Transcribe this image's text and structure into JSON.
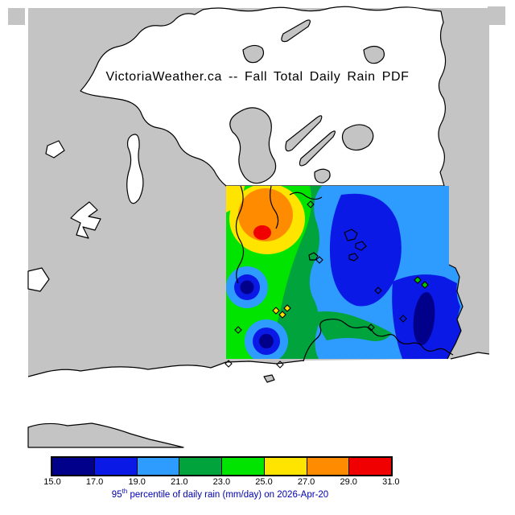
{
  "title": "VictoriaWeather.ca -- Fall Total Daily Rain PDF",
  "caption": {
    "value_prefix": "95",
    "sup": "th",
    "rest": " percentile of daily rain (mm/day) on 2026-Apr-20"
  },
  "colorbar": {
    "labels": [
      "15.0",
      "17.0",
      "19.0",
      "21.0",
      "23.0",
      "25.0",
      "27.0",
      "29.0",
      "31.0"
    ],
    "colors": [
      "#00008B",
      "#0A19E6",
      "#2E9BFF",
      "#00A33C",
      "#00E400",
      "#FFE400",
      "#FF8C00",
      "#F00000"
    ]
  },
  "map": {
    "land_color": "#C4C4C4",
    "water_color": "#FFFFFF",
    "coast_color": "#000000"
  },
  "chart_data": {
    "type": "heatmap",
    "title": "VictoriaWeather.ca -- Fall Total Daily Rain PDF",
    "caption": "95th percentile of daily rain (mm/day) on 2026-Apr-20",
    "variable": "95th percentile of daily rain",
    "units": "mm/day",
    "date": "2026-Apr-20",
    "season": "Fall",
    "colorbar_ticks": [
      15.0,
      17.0,
      19.0,
      21.0,
      23.0,
      25.0,
      27.0,
      29.0,
      31.0
    ],
    "colorbar_colors": [
      "#00008B",
      "#0A19E6",
      "#2E9BFF",
      "#00A33C",
      "#00E400",
      "#FFE400",
      "#FF8C00",
      "#F00000"
    ],
    "value_range": [
      15.0,
      31.0
    ],
    "legend_position": "bottom",
    "features": [
      {
        "label": "maximum (red core)",
        "approx_value": 31,
        "location": "northwest of data domain"
      },
      {
        "label": "local minimum (navy core)",
        "approx_value": 15,
        "location": "west-central, near left edge"
      },
      {
        "label": "local minimum (navy core)",
        "approx_value": 15,
        "location": "southwest of data domain"
      },
      {
        "label": "broad minimum (large blue blob)",
        "approx_value": 16,
        "location": "east-central"
      },
      {
        "label": "dark streak",
        "approx_value": 16,
        "location": "southeast extension"
      }
    ]
  }
}
